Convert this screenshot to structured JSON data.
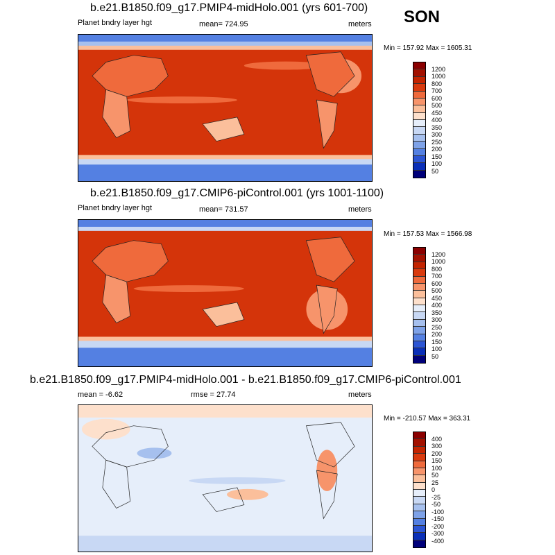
{
  "season": "SON",
  "panels": [
    {
      "title": "b.e21.B1850.f09_g17.PMIP4-midHolo.001 (yrs 601-700)",
      "left_label": "Planet bndry layer hgt",
      "center_label": "mean= 724.95",
      "right_label": "meters",
      "minmax": "Min = 157.92 Max = 1605.31",
      "levels": [
        "1200",
        "1000",
        "800",
        "700",
        "600",
        "500",
        "450",
        "400",
        "350",
        "300",
        "250",
        "200",
        "150",
        "100",
        "50"
      ],
      "colors": [
        "#8b0000",
        "#a31100",
        "#c42400",
        "#d93a0e",
        "#ef6a3c",
        "#f7946b",
        "#fbbf9b",
        "#fde0cc",
        "#e6eefa",
        "#c8d8f4",
        "#a6c0ee",
        "#7ea2e8",
        "#5480e2",
        "#2c55d4",
        "#0a2fb8",
        "#00007a"
      ]
    },
    {
      "title": "b.e21.B1850.f09_g17.CMIP6-piControl.001 (yrs 1001-1100)",
      "left_label": "Planet bndry layer hgt",
      "center_label": "mean= 731.57",
      "right_label": "meters",
      "minmax": "Min = 157.53 Max = 1566.98",
      "levels": [
        "1200",
        "1000",
        "800",
        "700",
        "600",
        "500",
        "450",
        "400",
        "350",
        "300",
        "250",
        "200",
        "150",
        "100",
        "50"
      ],
      "colors": [
        "#8b0000",
        "#a31100",
        "#c42400",
        "#d93a0e",
        "#ef6a3c",
        "#f7946b",
        "#fbbf9b",
        "#fde0cc",
        "#e6eefa",
        "#c8d8f4",
        "#a6c0ee",
        "#7ea2e8",
        "#5480e2",
        "#2c55d4",
        "#0a2fb8",
        "#00007a"
      ]
    },
    {
      "title": "b.e21.B1850.f09_g17.PMIP4-midHolo.001 - b.e21.B1850.f09_g17.CMIP6-piControl.001",
      "left_label": "mean =  -6.62",
      "center_label": "rmse =  27.74",
      "right_label": "meters",
      "minmax": "Min = -210.57 Max = 363.31",
      "levels": [
        "400",
        "300",
        "200",
        "150",
        "100",
        "50",
        "25",
        "0",
        "-25",
        "-50",
        "-100",
        "-150",
        "-200",
        "-300",
        "-400"
      ],
      "colors": [
        "#8b0000",
        "#a31100",
        "#c42400",
        "#d93a0e",
        "#ef6a3c",
        "#f7946b",
        "#fbbf9b",
        "#fde0cc",
        "#e6eefa",
        "#c8d8f4",
        "#a6c0ee",
        "#7ea2e8",
        "#5480e2",
        "#2c55d4",
        "#0a2fb8",
        "#00007a"
      ]
    }
  ]
}
